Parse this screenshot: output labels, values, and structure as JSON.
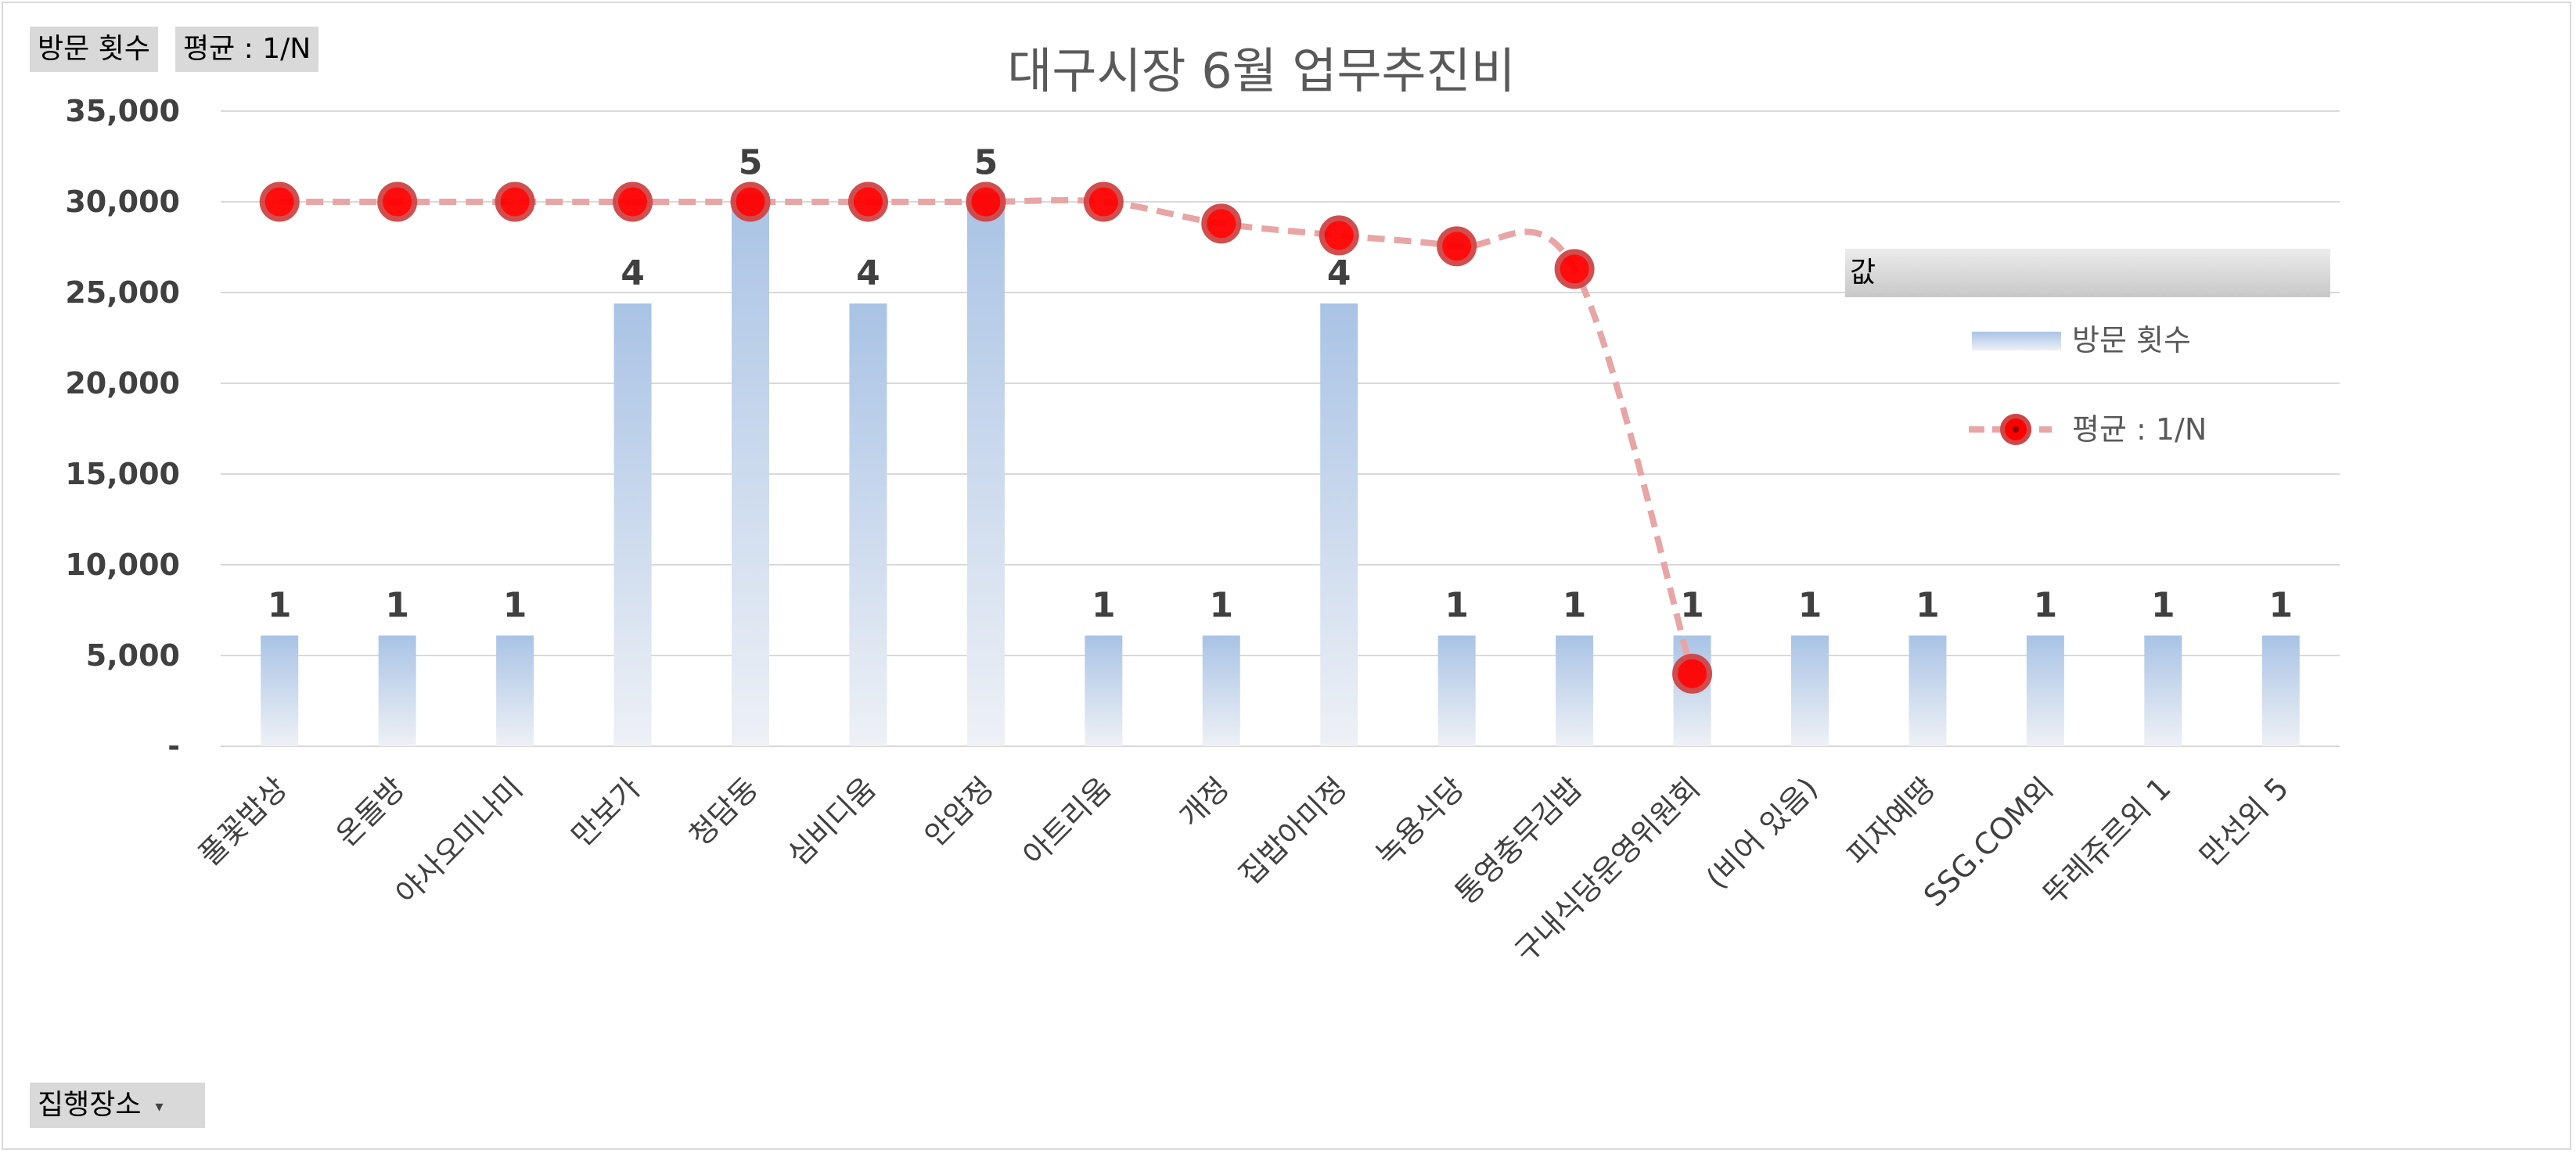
{
  "field_buttons": {
    "visits_label": "방문 횟수",
    "avg_label": "평균 : 1/N",
    "place_label": "집행장소"
  },
  "legend": {
    "header": "값",
    "bar_label": "방문 횟수",
    "line_label": "평균 : 1/N"
  },
  "colors": {
    "bar_top": "#a9c3e5",
    "bar_bottom": "#eef1f6",
    "line": "#e8a5a5",
    "marker_fill": "#ff0000",
    "marker_border": "#d04545",
    "grid": "#d9d9d9",
    "tick_text": "#404040",
    "title": "#595959"
  },
  "chart_data": {
    "type": "bar+line",
    "title": "대구시장 6월 업무추진비",
    "categories": [
      "풀꽃밥상",
      "온돌방",
      "야사오미나미",
      "만보가",
      "청담동",
      "심비디움",
      "안압정",
      "아트리움",
      "개정",
      "집밥아미정",
      "녹용식당",
      "통영충무김밥",
      "구내식당운영위원회",
      "(비어 있음)",
      "피자예땅",
      "SSG.COM외",
      "뚜레쥬르외 1",
      "만선외 5"
    ],
    "ylim": [
      0,
      35000
    ],
    "yticks": [
      0,
      5000,
      10000,
      15000,
      20000,
      25000,
      30000,
      35000
    ],
    "ytick_labels": [
      "-",
      "5,000",
      "10,000",
      "15,000",
      "20,000",
      "25,000",
      "30,000",
      "35,000"
    ],
    "grid": true,
    "legend_position": "right",
    "series": [
      {
        "name": "방문 횟수",
        "type": "bar",
        "values": [
          1,
          1,
          1,
          4,
          5,
          4,
          5,
          1,
          1,
          4,
          1,
          1,
          1,
          1,
          1,
          1,
          1,
          1
        ],
        "data_labels": [
          "1",
          "1",
          "1",
          "4",
          "5",
          "4",
          "5",
          "1",
          "1",
          "4",
          "1",
          "1",
          "1",
          "1",
          "1",
          "1",
          "1",
          "1"
        ]
      },
      {
        "name": "평균 : 1/N",
        "type": "line",
        "values": [
          30000,
          30000,
          30000,
          30000,
          30000,
          30000,
          30000,
          30000,
          28800,
          28150,
          27550,
          26300,
          4000,
          null,
          null,
          null,
          null,
          null
        ]
      }
    ]
  }
}
